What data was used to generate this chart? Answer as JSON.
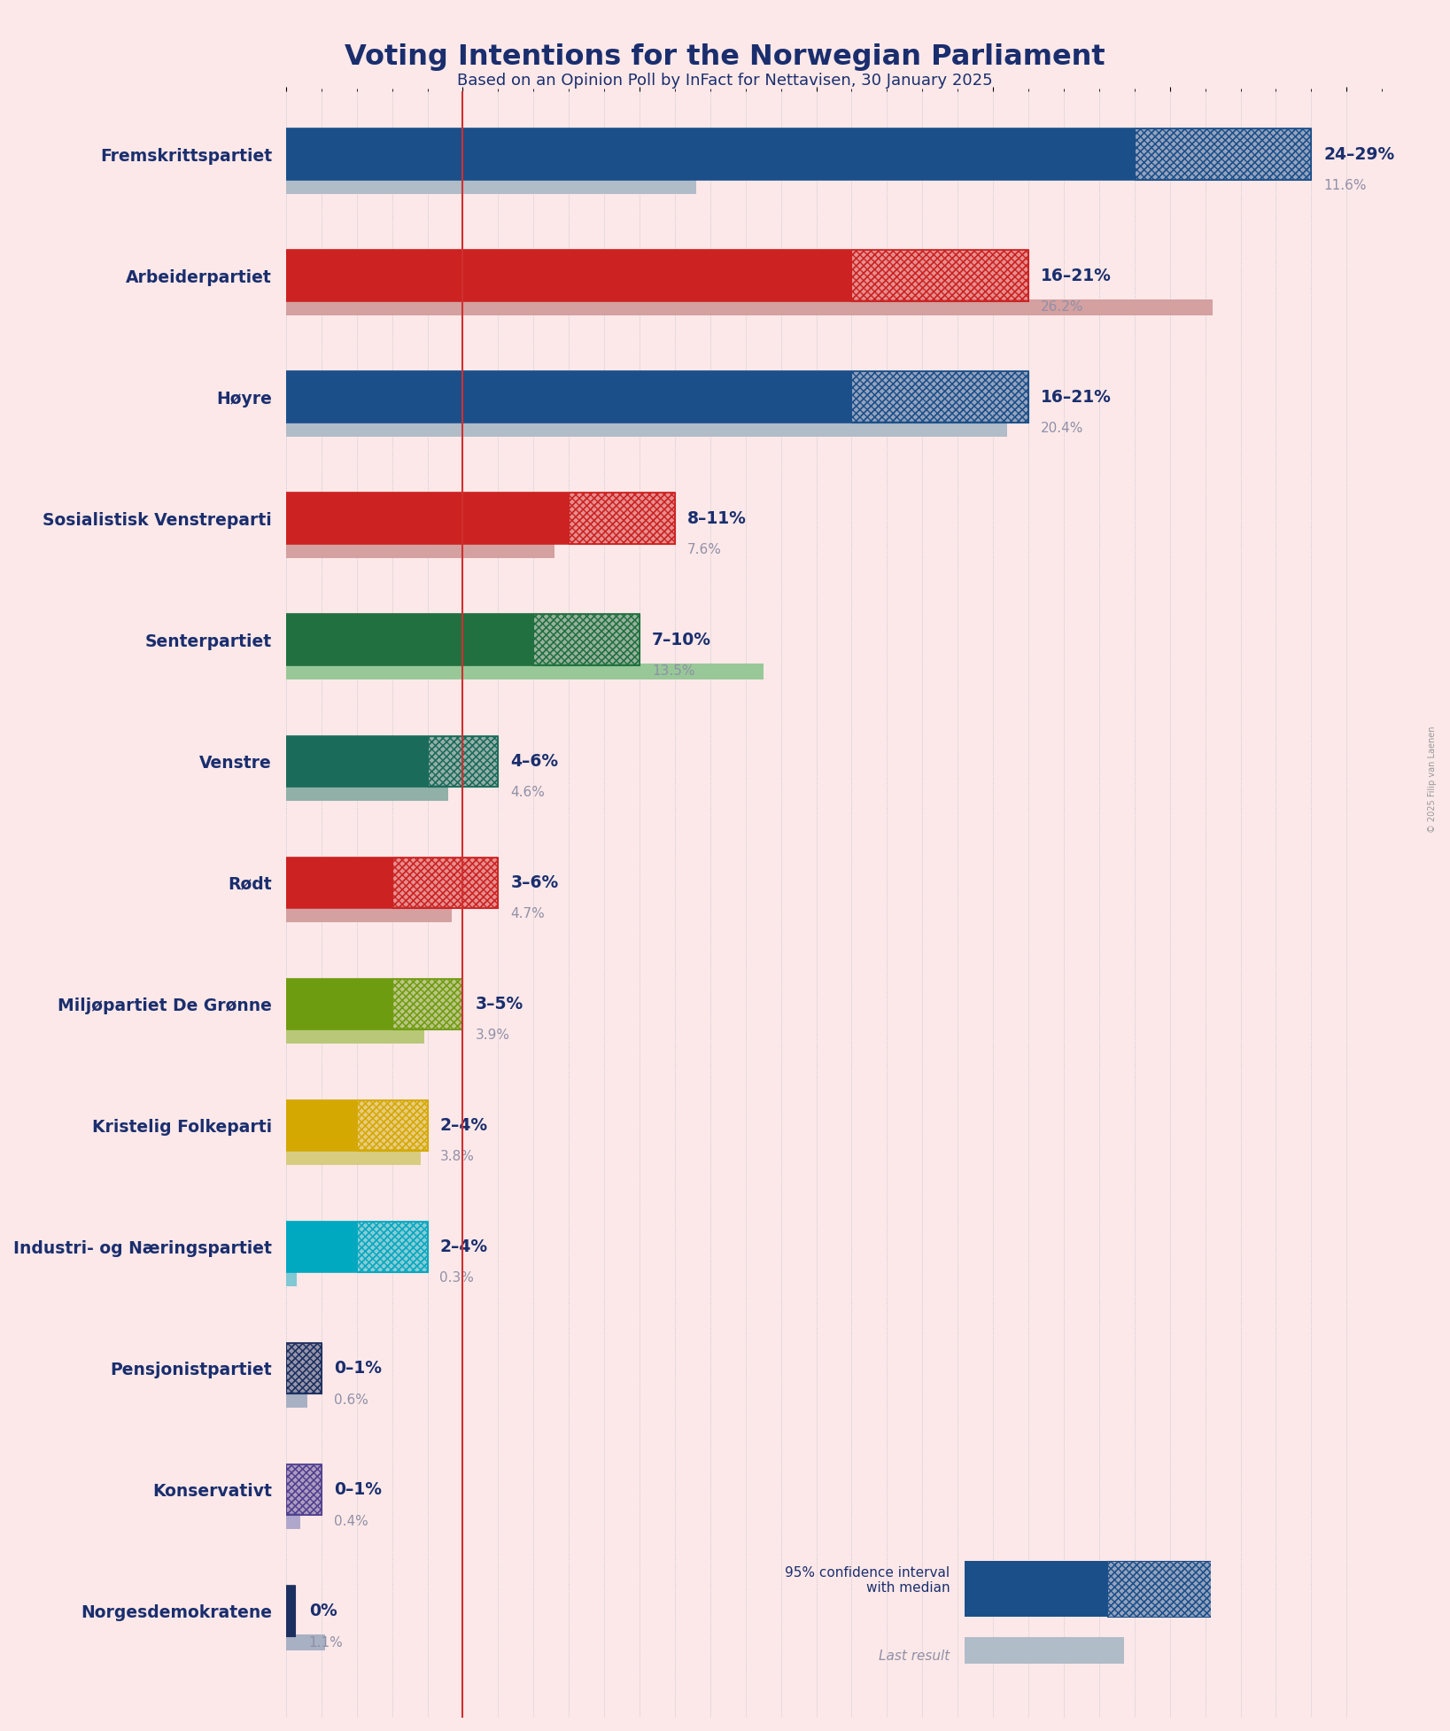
{
  "title": "Voting Intentions for the Norwegian Parliament",
  "subtitle": "Based on an Opinion Poll by InFact for Nettavisen, 30 January 2025",
  "watermark": "© 2025 Filip van Laenen",
  "background_color": "#fce8e8",
  "parties": [
    {
      "name": "Fremskrittspartiet",
      "ci_low": 24,
      "ci_high": 29,
      "last_result": 11.6,
      "color": "#1b4f8a",
      "last_color": "#b0bcc8",
      "label": "24–29%",
      "last_label": "11.6%"
    },
    {
      "name": "Arbeiderpartiet",
      "ci_low": 16,
      "ci_high": 21,
      "last_result": 26.2,
      "color": "#cc2222",
      "last_color": "#d4a0a0",
      "label": "16–21%",
      "last_label": "26.2%"
    },
    {
      "name": "Høyre",
      "ci_low": 16,
      "ci_high": 21,
      "last_result": 20.4,
      "color": "#1b4f8a",
      "last_color": "#b0bcc8",
      "label": "16–21%",
      "last_label": "20.4%"
    },
    {
      "name": "Sosialistisk Venstreparti",
      "ci_low": 8,
      "ci_high": 11,
      "last_result": 7.6,
      "color": "#cc2222",
      "last_color": "#d4a0a0",
      "label": "8–11%",
      "last_label": "7.6%"
    },
    {
      "name": "Senterpartiet",
      "ci_low": 7,
      "ci_high": 10,
      "last_result": 13.5,
      "color": "#207040",
      "last_color": "#98c898",
      "label": "7–10%",
      "last_label": "13.5%"
    },
    {
      "name": "Venstre",
      "ci_low": 4,
      "ci_high": 6,
      "last_result": 4.6,
      "color": "#1a6b5a",
      "last_color": "#90b0a8",
      "label": "4–6%",
      "last_label": "4.6%"
    },
    {
      "name": "Rødt",
      "ci_low": 3,
      "ci_high": 6,
      "last_result": 4.7,
      "color": "#cc2222",
      "last_color": "#d4a0a0",
      "label": "3–6%",
      "last_label": "4.7%"
    },
    {
      "name": "Miljøpartiet De Grønne",
      "ci_low": 3,
      "ci_high": 5,
      "last_result": 3.9,
      "color": "#6e9c10",
      "last_color": "#b8c878",
      "label": "3–5%",
      "last_label": "3.9%"
    },
    {
      "name": "Kristelig Folkeparti",
      "ci_low": 2,
      "ci_high": 4,
      "last_result": 3.8,
      "color": "#d4a800",
      "last_color": "#d8cc80",
      "label": "2–4%",
      "last_label": "3.8%"
    },
    {
      "name": "Industri- og Næringspartiet",
      "ci_low": 2,
      "ci_high": 4,
      "last_result": 0.3,
      "color": "#00a8c0",
      "last_color": "#80c8d4",
      "label": "2–4%",
      "last_label": "0.3%"
    },
    {
      "name": "Pensjonistpartiet",
      "ci_low": 0,
      "ci_high": 1,
      "last_result": 0.6,
      "color": "#1c3060",
      "last_color": "#a8b0c4",
      "label": "0–1%",
      "last_label": "0.6%"
    },
    {
      "name": "Konservativt",
      "ci_low": 0,
      "ci_high": 1,
      "last_result": 0.4,
      "color": "#504090",
      "last_color": "#b0a8cc",
      "label": "0–1%",
      "last_label": "0.4%"
    },
    {
      "name": "Norgesdemokratene",
      "ci_low": 0,
      "ci_high": 0,
      "last_result": 1.1,
      "color": "#1c3060",
      "last_color": "#a8b0c4",
      "label": "0%",
      "last_label": "1.1%"
    }
  ],
  "red_line_x": 5.0,
  "xlim_max": 31
}
